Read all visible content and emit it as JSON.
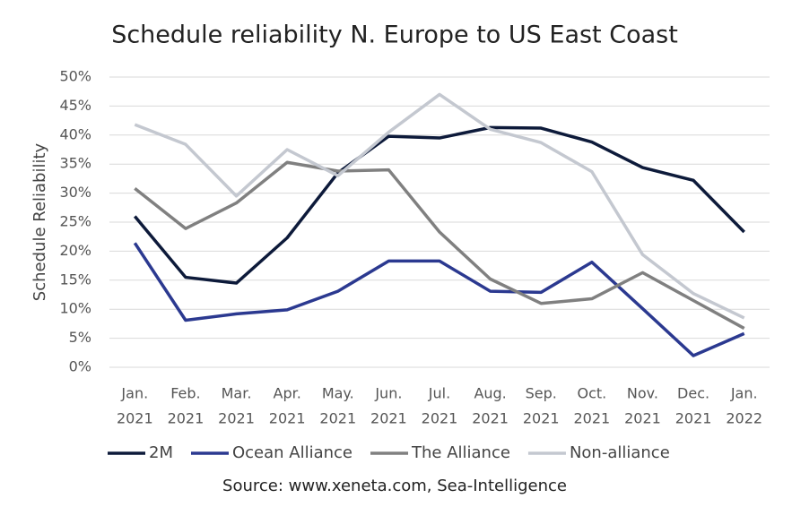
{
  "chart_data": {
    "type": "line",
    "title": "Schedule reliability N. Europe to US East Coast",
    "y_label": "Schedule Reliability",
    "source": "Source: www.xeneta.com, Sea-Intelligence",
    "categories": [
      [
        "Jan.",
        "2021"
      ],
      [
        "Feb.",
        "2021"
      ],
      [
        "Mar.",
        "2021"
      ],
      [
        "Apr.",
        "2021"
      ],
      [
        "May.",
        "2021"
      ],
      [
        "Jun.",
        "2021"
      ],
      [
        "Jul.",
        "2021"
      ],
      [
        "Aug.",
        "2021"
      ],
      [
        "Sep.",
        "2021"
      ],
      [
        "Oct.",
        "2021"
      ],
      [
        "Nov.",
        "2021"
      ],
      [
        "Dec.",
        "2021"
      ],
      [
        "Jan.",
        "2022"
      ]
    ],
    "series": [
      {
        "name": "2M",
        "color": "#0d1a3a",
        "values": [
          26.0,
          15.5,
          14.5,
          22.3,
          33.5,
          39.8,
          39.5,
          41.3,
          41.2,
          38.8,
          34.4,
          32.2,
          23.3
        ]
      },
      {
        "name": "Ocean Alliance",
        "color": "#2b3990",
        "values": [
          21.4,
          8.1,
          9.2,
          9.9,
          13.1,
          18.3,
          18.3,
          13.1,
          12.9,
          18.1,
          10.1,
          2.0,
          5.8
        ]
      },
      {
        "name": "The Alliance",
        "color": "#808080",
        "values": [
          30.8,
          23.9,
          28.3,
          35.3,
          33.8,
          34.0,
          23.3,
          15.2,
          11.0,
          11.8,
          16.3,
          11.5,
          6.7
        ]
      },
      {
        "name": "Non-alliance",
        "color": "#c4c8d0",
        "values": [
          41.8,
          38.4,
          29.5,
          37.5,
          33.0,
          40.5,
          47.0,
          41.0,
          38.7,
          33.7,
          19.4,
          12.7,
          8.5
        ]
      }
    ],
    "ylim": [
      0,
      50
    ],
    "yticks": [
      {
        "value": 0,
        "label": "0%"
      },
      {
        "value": 5,
        "label": "5%"
      },
      {
        "value": 10,
        "label": "10%"
      },
      {
        "value": 15,
        "label": "15%"
      },
      {
        "value": 20,
        "label": "20%"
      },
      {
        "value": 25,
        "label": "25%"
      },
      {
        "value": 30,
        "label": "30%"
      },
      {
        "value": 35,
        "label": "35%"
      },
      {
        "value": 40,
        "label": "40%"
      },
      {
        "value": 45,
        "label": "45%"
      },
      {
        "value": 50,
        "label": "50%"
      }
    ],
    "grid": true,
    "legend": "bottom"
  }
}
